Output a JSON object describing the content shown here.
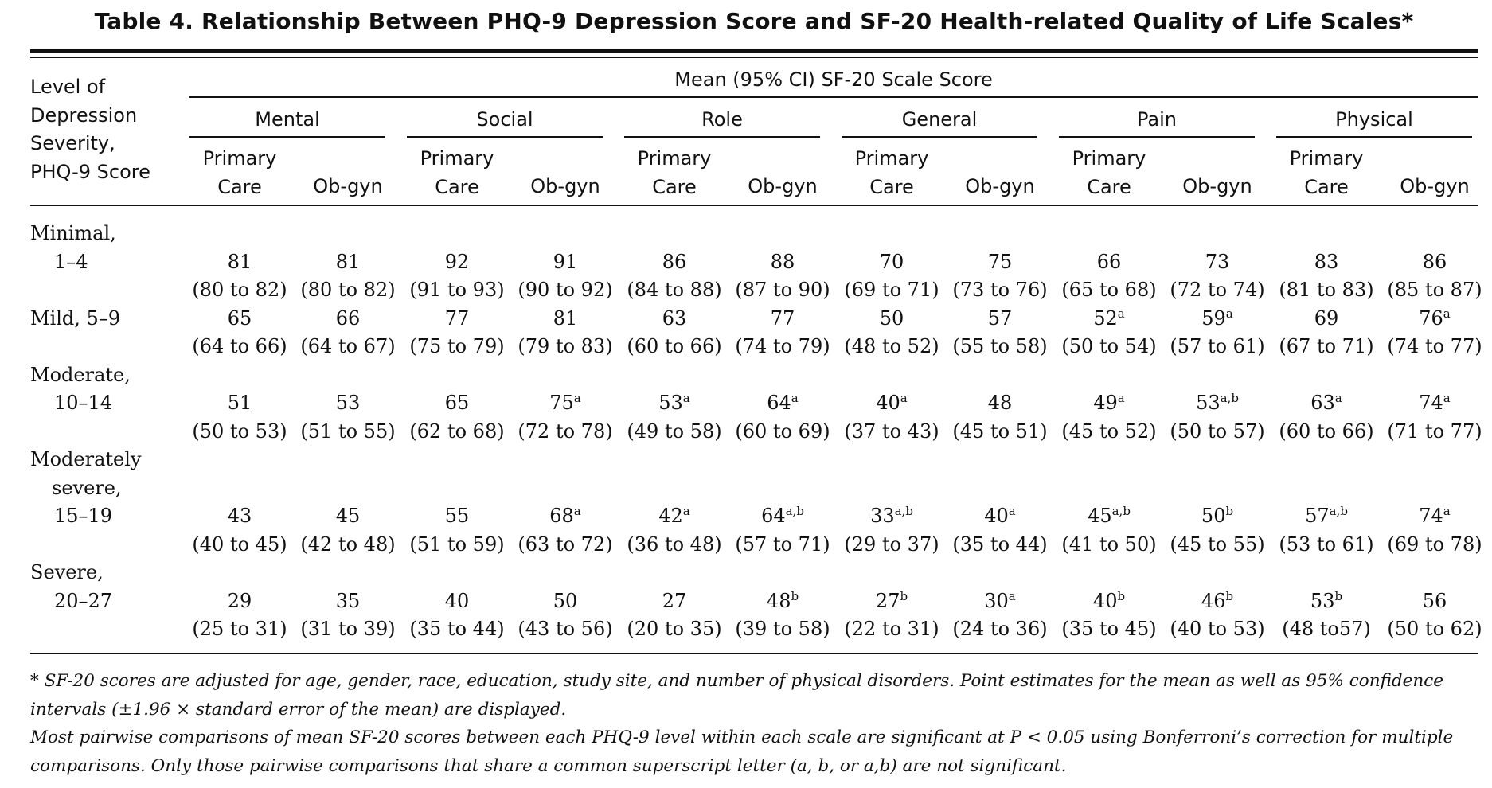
{
  "title": "Table 4.  Relationship Between PHQ-9 Depression Score and SF-20 Health-related Quality of Life Scales*",
  "stub_header": [
    "Level of",
    "Depression",
    "Severity,",
    "PHQ-9 Score"
  ],
  "spanner": "Mean (95% CI) SF-20 Scale Score",
  "scales": [
    "Mental",
    "Social",
    "Role",
    "General",
    "Pain",
    "Physical"
  ],
  "col_labels": {
    "primary_line1": "Primary",
    "primary_line2": "Care",
    "obgyn": "Ob-gyn"
  },
  "rows": [
    {
      "label_lines": [
        "Minimal,",
        "1–4"
      ],
      "means": [
        "81",
        "81",
        "92",
        "91",
        "86",
        "88",
        "70",
        "75",
        "66",
        "73",
        "83",
        "86"
      ],
      "sups": [
        "",
        "",
        "",
        "",
        "",
        "",
        "",
        "",
        "",
        "",
        "",
        ""
      ],
      "cis": [
        "(80 to 82)",
        "(80 to 82)",
        "(91 to 93)",
        "(90 to 92)",
        "(84 to 88)",
        "(87 to 90)",
        "(69 to 71)",
        "(73 to 76)",
        "(65 to 68)",
        "(72 to 74)",
        "(81 to 83)",
        "(85 to 87)"
      ]
    },
    {
      "label_lines": [
        "Mild, 5–9"
      ],
      "means": [
        "65",
        "66",
        "77",
        "81",
        "63",
        "77",
        "50",
        "57",
        "52",
        "59",
        "69",
        "76"
      ],
      "sups": [
        "",
        "",
        "",
        "",
        "",
        "",
        "",
        "",
        "a",
        "a",
        "",
        "a"
      ],
      "cis": [
        "(64 to 66)",
        "(64 to 67)",
        "(75 to 79)",
        "(79 to 83)",
        "(60 to 66)",
        "(74 to 79)",
        "(48 to 52)",
        "(55 to 58)",
        "(50 to 54)",
        "(57 to 61)",
        "(67 to 71)",
        "(74 to 77)"
      ]
    },
    {
      "label_lines": [
        "Moderate,",
        "10–14"
      ],
      "means": [
        "51",
        "53",
        "65",
        "75",
        "53",
        "64",
        "40",
        "48",
        "49",
        "53",
        "63",
        "74"
      ],
      "sups": [
        "",
        "",
        "",
        "a",
        "a",
        "a",
        "a",
        "",
        "a",
        "a,b",
        "a",
        "a"
      ],
      "cis": [
        "(50 to 53)",
        "(51 to 55)",
        "(62 to 68)",
        "(72 to 78)",
        "(49 to 58)",
        "(60 to 69)",
        "(37 to 43)",
        "(45 to 51)",
        "(45 to 52)",
        "(50 to 57)",
        "(60 to 66)",
        "(71 to 77)"
      ]
    },
    {
      "label_lines": [
        "Moderately",
        "severe,",
        "15–19"
      ],
      "means": [
        "43",
        "45",
        "55",
        "68",
        "42",
        "64",
        "33",
        "40",
        "45",
        "50",
        "57",
        "74"
      ],
      "sups": [
        "",
        "",
        "",
        "a",
        "a",
        "a,b",
        "a,b",
        "a",
        "a,b",
        "b",
        "a,b",
        "a"
      ],
      "cis": [
        "(40 to 45)",
        "(42 to 48)",
        "(51 to 59)",
        "(63 to 72)",
        "(36 to 48)",
        "(57 to 71)",
        "(29 to 37)",
        "(35 to 44)",
        "(41 to 50)",
        "(45 to 55)",
        "(53 to 61)",
        "(69 to 78)"
      ]
    },
    {
      "label_lines": [
        "Severe,",
        "20–27"
      ],
      "means": [
        "29",
        "35",
        "40",
        "50",
        "27",
        "48",
        "27",
        "30",
        "40",
        "46",
        "53",
        "56"
      ],
      "sups": [
        "",
        "",
        "",
        "",
        "",
        "b",
        "b",
        "a",
        "b",
        "b",
        "b",
        ""
      ],
      "cis": [
        "(25 to 31)",
        "(31 to 39)",
        "(35 to 44)",
        "(43 to 56)",
        "(20 to 35)",
        "(39 to 58)",
        "(22 to 31)",
        "(24 to 36)",
        "(35 to 45)",
        "(40 to 53)",
        "(48 to57)",
        "(50 to 62)"
      ]
    }
  ],
  "footnotes": [
    "* SF-20 scores are adjusted for age, gender, race, education, study site, and number of physical disorders. Point estimates for the mean as well as 95% confidence intervals (±1.96 × standard error of the mean) are displayed.",
    "Most pairwise comparisons of mean SF-20 scores between each PHQ-9 level within each scale are significant at P < 0.05 using Bonferroni’s correction for multiple comparisons. Only those pairwise comparisons that share a common superscript letter (a, b, or a,b) are not significant."
  ]
}
